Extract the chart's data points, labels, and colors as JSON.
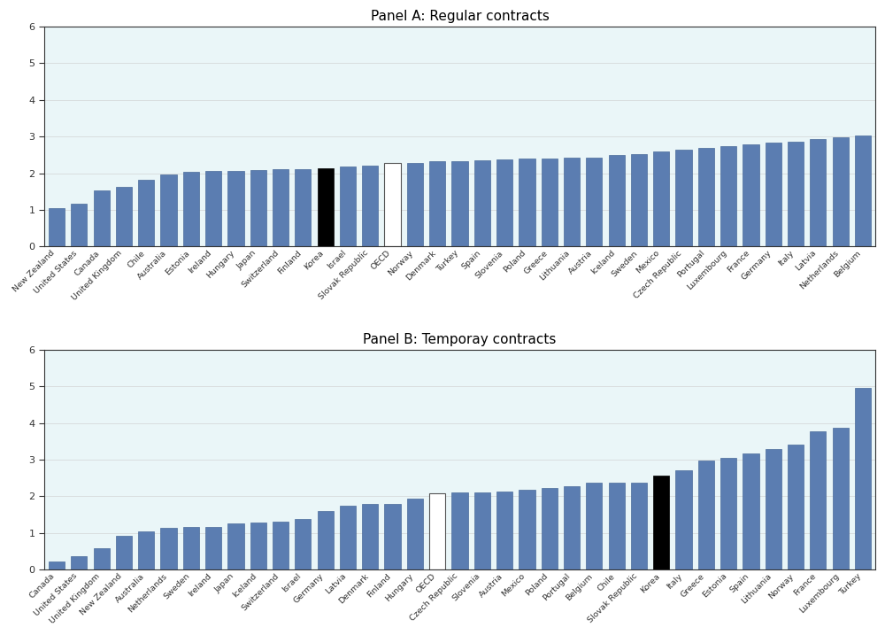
{
  "panel_a": {
    "title": "Panel A: Regular contracts",
    "categories": [
      "New Zealand",
      "United States",
      "Canada",
      "United Kingdom",
      "Chile",
      "Australia",
      "Estonia",
      "Ireland",
      "Hungary",
      "Japan",
      "Switzerland",
      "Finland",
      "Korea",
      "Israel",
      "Slovak Republic",
      "OECD",
      "Norway",
      "Denmark",
      "Turkey",
      "Spain",
      "Slovenia",
      "Poland",
      "Greece",
      "Lithuania",
      "Austria",
      "Iceland",
      "Sweden",
      "Mexico",
      "Czech Republic",
      "Portugal",
      "Luxembourg",
      "France",
      "Germany",
      "Italy",
      "Latvia",
      "Netherlands",
      "Belgium"
    ],
    "values": [
      1.04,
      1.17,
      1.52,
      1.62,
      1.82,
      1.96,
      2.04,
      2.05,
      2.06,
      2.08,
      2.1,
      2.12,
      2.14,
      2.17,
      2.2,
      2.27,
      2.29,
      2.33,
      2.33,
      2.35,
      2.38,
      2.4,
      2.4,
      2.43,
      2.43,
      2.5,
      2.52,
      2.6,
      2.64,
      2.68,
      2.73,
      2.78,
      2.83,
      2.87,
      2.92,
      2.97,
      3.03
    ],
    "bar_type": [
      "blue",
      "blue",
      "blue",
      "blue",
      "blue",
      "blue",
      "blue",
      "blue",
      "blue",
      "blue",
      "blue",
      "blue",
      "black",
      "blue",
      "blue",
      "white",
      "blue",
      "blue",
      "blue",
      "blue",
      "blue",
      "blue",
      "blue",
      "blue",
      "blue",
      "blue",
      "blue",
      "blue",
      "blue",
      "blue",
      "blue",
      "blue",
      "blue",
      "blue",
      "blue",
      "blue",
      "blue"
    ],
    "ylim": [
      0,
      6
    ],
    "yticks": [
      0,
      1,
      2,
      3,
      4,
      5,
      6
    ]
  },
  "panel_b": {
    "title": "Panel B: Temporay contracts",
    "categories": [
      "Canada",
      "United States",
      "United Kingdom",
      "New Zealand",
      "Australia",
      "Netherlands",
      "Sweden",
      "Ireland",
      "Japan",
      "Iceland",
      "Switzerland",
      "Israel",
      "Germany",
      "Latvia",
      "Denmark",
      "Finland",
      "Hungary",
      "OECD",
      "Czech Republic",
      "Slovenia",
      "Austria",
      "Mexico",
      "Poland",
      "Portugal",
      "Belgium",
      "Chile",
      "Slovak Republic",
      "Korea",
      "Italy",
      "Greece",
      "Estonia",
      "Spain",
      "Lithuania",
      "Norway",
      "France",
      "Luxembourg",
      "Turkey"
    ],
    "values": [
      0.21,
      0.36,
      0.58,
      0.92,
      1.05,
      1.14,
      1.17,
      1.17,
      1.25,
      1.27,
      1.3,
      1.38,
      1.6,
      1.75,
      1.78,
      1.79,
      1.93,
      2.08,
      2.1,
      2.1,
      2.13,
      2.18,
      2.23,
      2.27,
      2.36,
      2.38,
      2.38,
      2.56,
      2.7,
      2.97,
      3.05,
      3.17,
      3.28,
      3.42,
      3.76,
      3.86,
      4.95
    ],
    "bar_type": [
      "blue",
      "blue",
      "blue",
      "blue",
      "blue",
      "blue",
      "blue",
      "blue",
      "blue",
      "blue",
      "blue",
      "blue",
      "blue",
      "blue",
      "blue",
      "blue",
      "blue",
      "white",
      "blue",
      "blue",
      "blue",
      "blue",
      "blue",
      "blue",
      "blue",
      "blue",
      "blue",
      "black",
      "blue",
      "blue",
      "blue",
      "blue",
      "blue",
      "blue",
      "blue",
      "blue",
      "blue"
    ],
    "ylim": [
      0,
      6
    ],
    "yticks": [
      0,
      1,
      2,
      3,
      4,
      5,
      6
    ]
  },
  "blue_color": "#5B7DB1",
  "black_color": "#000000",
  "white_color": "#FFFFFF",
  "bg_color": "#EAF6F8",
  "bar_edge_color": "#4a6a9a",
  "white_edge_color": "#555555",
  "tick_label_fontsize": 6.8,
  "title_fontsize": 11,
  "bar_width": 0.72
}
